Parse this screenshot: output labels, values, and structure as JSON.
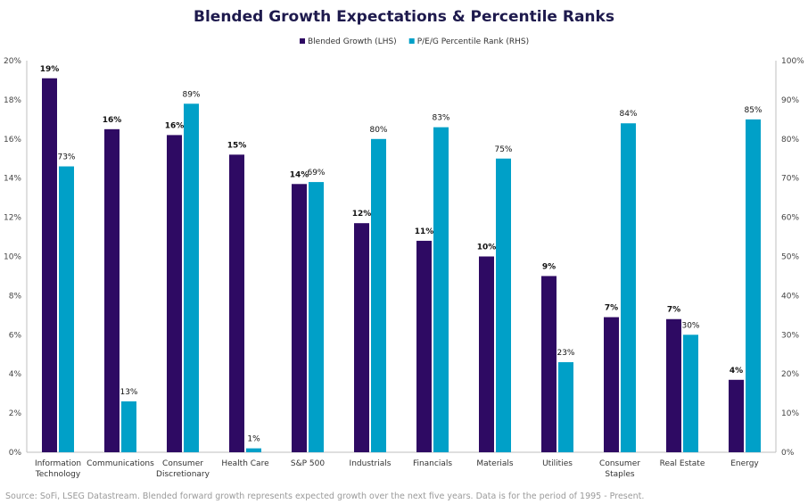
{
  "chart_data": {
    "type": "bar",
    "title": "Blended Growth Expectations & Percentile Ranks",
    "categories": [
      "Information Technology",
      "Communications",
      "Consumer Discretionary",
      "Health Care",
      "S&P 500",
      "Industrials",
      "Financials",
      "Materials",
      "Utilities",
      "Consumer Staples",
      "Real Estate",
      "Energy"
    ],
    "category_lines": [
      [
        "Information",
        "Technology"
      ],
      [
        "Communications"
      ],
      [
        "Consumer",
        "Discretionary"
      ],
      [
        "Health Care"
      ],
      [
        "S&P 500"
      ],
      [
        "Industrials"
      ],
      [
        "Financials"
      ],
      [
        "Materials"
      ],
      [
        "Utilities"
      ],
      [
        "Consumer",
        "Staples"
      ],
      [
        "Real Estate"
      ],
      [
        "Energy"
      ]
    ],
    "series": [
      {
        "name": "Blended Growth (LHS)",
        "axis": "left",
        "color": "#2e0a63",
        "values": [
          19.1,
          16.5,
          16.2,
          15.2,
          13.7,
          11.7,
          10.8,
          10.0,
          9.0,
          6.9,
          6.8,
          3.7
        ],
        "labels": [
          "19%",
          "16%",
          "16%",
          "15%",
          "14%",
          "12%",
          "11%",
          "10%",
          "9%",
          "7%",
          "7%",
          "4%"
        ]
      },
      {
        "name": "P/E/G Percentile Rank (RHS)",
        "axis": "right",
        "color": "#00a0c8",
        "values": [
          73,
          13,
          89,
          1,
          69,
          80,
          83,
          75,
          23,
          84,
          30,
          85
        ],
        "labels": [
          "73%",
          "13%",
          "89%",
          "1%",
          "69%",
          "80%",
          "83%",
          "75%",
          "23%",
          "84%",
          "30%",
          "85%"
        ]
      }
    ],
    "y_left": {
      "min": 0,
      "max": 20,
      "step": 2,
      "ticks": [
        "0%",
        "2%",
        "4%",
        "6%",
        "8%",
        "10%",
        "12%",
        "14%",
        "16%",
        "18%",
        "20%"
      ]
    },
    "y_right": {
      "min": 0,
      "max": 100,
      "step": 10,
      "ticks": [
        "0%",
        "10%",
        "20%",
        "30%",
        "40%",
        "50%",
        "60%",
        "70%",
        "80%",
        "90%",
        "100%"
      ]
    },
    "legend_position": "top-center",
    "grid": false
  },
  "source_note": "Source: SoFi, LSEG Datastream. Blended forward growth represents expected growth over the next five years. Data is for the period of 1995 - Present."
}
